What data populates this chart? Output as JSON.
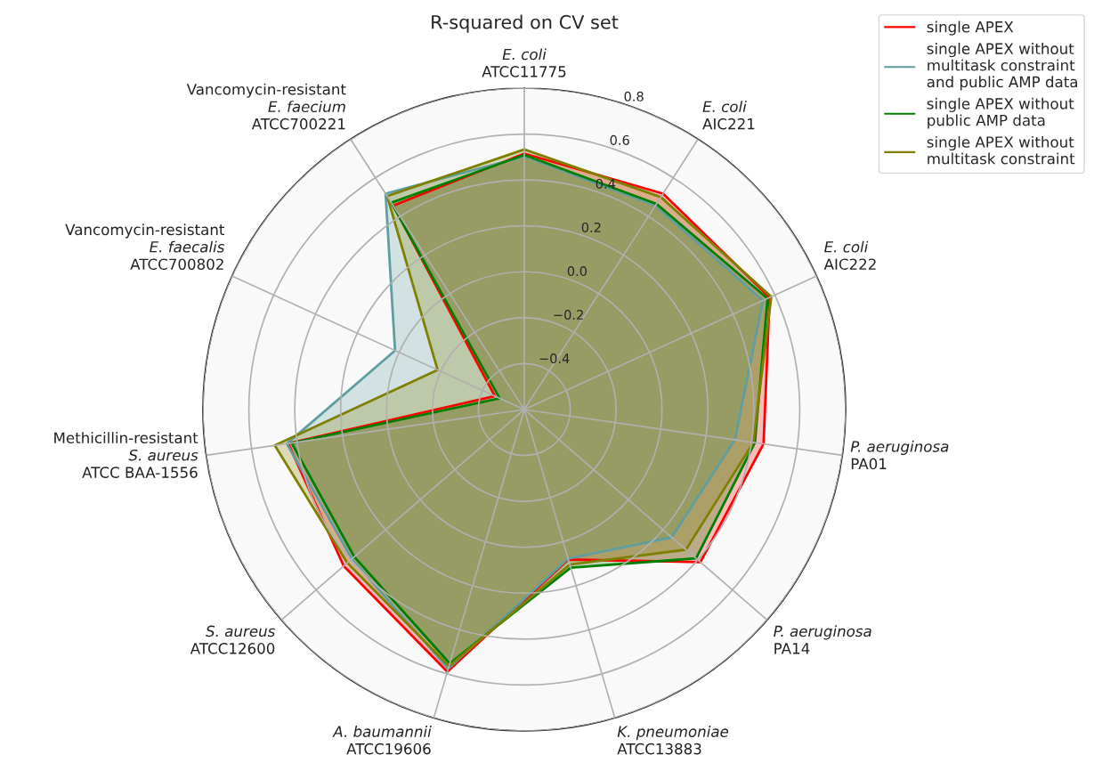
{
  "chart_data": {
    "type": "radar",
    "title": "R-squared on CV set",
    "categories": [
      "E. coli\nATCC11775",
      "E. coli\nAIC221",
      "E. coli\nAIC222",
      "P. aeruginosa\nPA01",
      "P. aeruginosa\nPA14",
      "K. pneumoniae\nATCC13883",
      "A. baumannii\nATCC19606",
      "S. aureus\nATCC12600",
      "Methicillin-resistant\nS. aureus\nATCC BAA-1556",
      "Vancomycin-resistant\nE. faecalis\nATCC700802",
      "Vancomycin-resistant\nE. faecium\nATCC700221"
    ],
    "series": [
      {
        "name": "single APEX",
        "color": "#ff0000",
        "values": [
          0.515,
          0.518,
          0.575,
          0.453,
          0.415,
          0.081,
          0.59,
          0.441,
          0.439,
          -0.459,
          0.456
        ]
      },
      {
        "name": "single APEX without\nmultitask constraint\nand public AMP data",
        "color": "#5f9ea0",
        "values": [
          0.503,
          0.457,
          0.543,
          0.327,
          0.25,
          0.077,
          0.576,
          0.394,
          0.445,
          0.019,
          0.518
        ]
      },
      {
        "name": "single APEX without\npublic AMP data",
        "color": "#008000",
        "values": [
          0.509,
          0.465,
          0.565,
          0.415,
          0.39,
          0.118,
          0.553,
          0.38,
          0.424,
          -0.482,
          0.471
        ]
      },
      {
        "name": "single APEX without\nmultitask constraint",
        "color": "#808000",
        "values": [
          0.533,
          0.5,
          0.583,
          0.408,
          0.332,
          0.104,
          0.565,
          0.42,
          0.498,
          -0.185,
          0.505
        ]
      }
    ],
    "ylim": [
      -0.6,
      0.8
    ],
    "yticks": [
      {
        "value": -0.4,
        "label": "−0.4"
      },
      {
        "value": -0.2,
        "label": "−0.2"
      },
      {
        "value": 0.0,
        "label": "0.0"
      },
      0.2,
      0.4,
      0.6,
      0.8
    ],
    "grid": true,
    "legend": "top right"
  }
}
